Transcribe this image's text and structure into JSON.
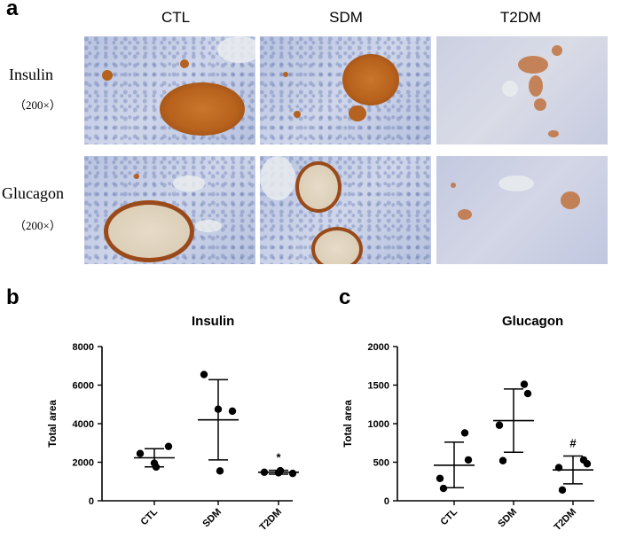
{
  "figure": {
    "panel_a_label": "a",
    "panel_b_label": "b",
    "panel_c_label": "c",
    "columns": [
      "CTL",
      "SDM",
      "T2DM"
    ],
    "rows": [
      {
        "label": "Insulin",
        "magnification": "（200×）"
      },
      {
        "label": "Glucagon",
        "magnification": "（200×）"
      }
    ]
  },
  "chart_data": [
    {
      "type": "scatter",
      "title": "Insulin",
      "ylabel": "Total area",
      "xlabel": "",
      "categories": [
        "CTL",
        "SDM",
        "T2DM"
      ],
      "ylim": [
        0,
        8000
      ],
      "yticks": [
        0,
        2000,
        4000,
        6000,
        8000
      ],
      "points": [
        [
          2450,
          2820,
          1950,
          1750
        ],
        [
          6550,
          4650,
          4750,
          1550
        ],
        [
          1480,
          1420,
          1450,
          1560
        ]
      ],
      "mean": [
        2230,
        4200,
        1480
      ],
      "sd_upper": [
        2700,
        6280,
        1580
      ],
      "sd_lower": [
        1760,
        2120,
        1380
      ],
      "annotations": [
        "",
        "",
        "*"
      ],
      "color": "#000000"
    },
    {
      "type": "scatter",
      "title": "Glucagon",
      "ylabel": "Total area",
      "xlabel": "",
      "categories": [
        "CTL",
        "SDM",
        "T2DM"
      ],
      "ylim": [
        0,
        2000
      ],
      "yticks": [
        0,
        500,
        1000,
        1500,
        2000
      ],
      "points": [
        [
          880,
          530,
          290,
          160
        ],
        [
          1510,
          1390,
          980,
          520
        ],
        [
          530,
          480,
          430,
          140
        ]
      ],
      "mean": [
        460,
        1040,
        400
      ],
      "sd_upper": [
        760,
        1450,
        580
      ],
      "sd_lower": [
        170,
        630,
        220
      ],
      "annotations": [
        "",
        "",
        "#"
      ],
      "color": "#000000"
    }
  ]
}
